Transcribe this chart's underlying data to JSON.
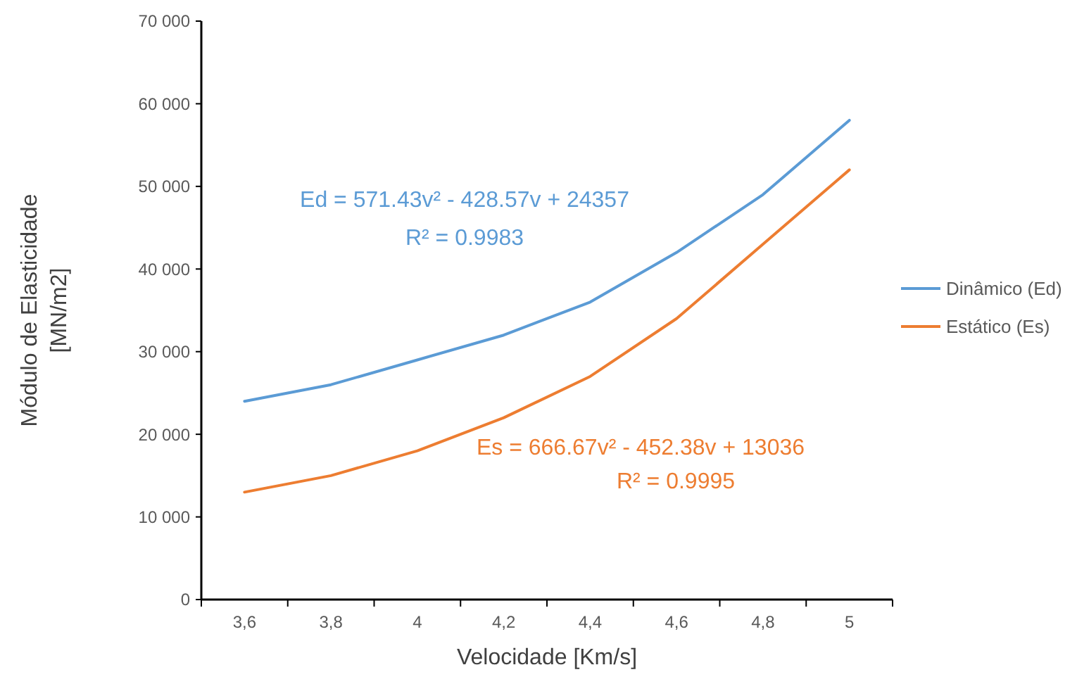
{
  "chart_data": {
    "type": "line",
    "xlabel": "Velocidade [Km/s]",
    "ylabel": "Módulo de Elasticidade [MN/m2]",
    "categories": [
      "3,6",
      "3,8",
      "4",
      "4,2",
      "4,4",
      "4,6",
      "4,8",
      "5"
    ],
    "series": [
      {
        "name": "Dinâmico (Ed)",
        "color": "#5b9bd5",
        "values": [
          24000,
          26000,
          29000,
          32000,
          36000,
          42000,
          49000,
          58000
        ]
      },
      {
        "name": "Estático (Es)",
        "color": "#ed7d31",
        "values": [
          13000,
          15000,
          18000,
          22000,
          27000,
          34000,
          43000,
          52000
        ]
      }
    ],
    "ylim": [
      0,
      70000
    ],
    "yticks": [
      {
        "value": 0,
        "label": "0"
      },
      {
        "value": 10000,
        "label": "10 000"
      },
      {
        "value": 20000,
        "label": "20 000"
      },
      {
        "value": 30000,
        "label": "30 000"
      },
      {
        "value": 40000,
        "label": "40 000"
      },
      {
        "value": 50000,
        "label": "50 000"
      },
      {
        "value": 60000,
        "label": "60 000"
      },
      {
        "value": 70000,
        "label": "70 000"
      }
    ],
    "grid": false,
    "legend": "right",
    "marker": "none",
    "line_style": "solid",
    "annotations": [
      "Ed = 571.43v² - 428.57v + 24357",
      "R² = 0.9983",
      "Es = 666.67v² - 452.38v + 13036",
      "R² = 0.9995"
    ]
  }
}
